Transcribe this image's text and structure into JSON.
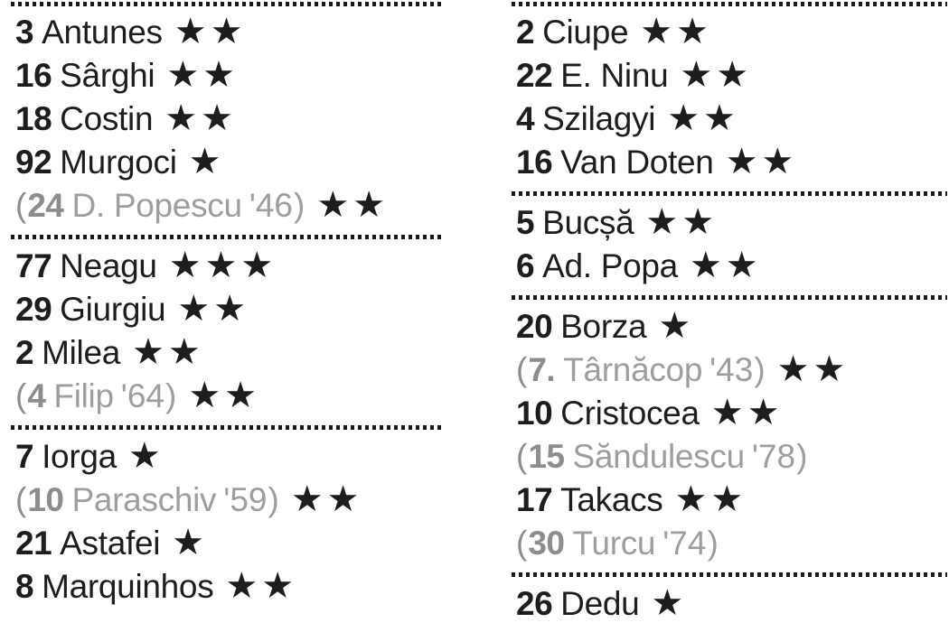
{
  "colors": {
    "background": "#ffffff",
    "ink": "#1d1d1b",
    "divider": "#171717",
    "sub_number_gray": "#8d8d8d",
    "sub_text_gray": "#9e9e9e"
  },
  "punctuation": {
    "open": "(",
    "close": ")"
  },
  "star_symbol": "★",
  "columns": [
    {
      "id": "col-home",
      "name": "home-team-ratings",
      "blocks": [
        {
          "rows": [
            {
              "number": "3",
              "name": "Antunes",
              "minute": "",
              "stars": "★★",
              "sub": false
            },
            {
              "number": "16",
              "name": "Sârghi",
              "minute": "",
              "stars": "★★",
              "sub": false
            },
            {
              "number": "18",
              "name": "Costin",
              "minute": "",
              "stars": "★★",
              "sub": false
            },
            {
              "number": "92",
              "name": "Murgoci",
              "minute": "",
              "stars": "★",
              "sub": false
            },
            {
              "number": "24",
              "name": "D. Popescu",
              "minute": "'46",
              "stars": "★★",
              "sub": true
            }
          ]
        },
        {
          "rows": [
            {
              "number": "77",
              "name": "Neagu",
              "minute": "",
              "stars": "★★★",
              "sub": false
            },
            {
              "number": "29",
              "name": "Giurgiu",
              "minute": "",
              "stars": "★★",
              "sub": false
            },
            {
              "number": "2",
              "name": "Milea",
              "minute": "",
              "stars": "★★",
              "sub": false
            },
            {
              "number": "4",
              "name": "Filip",
              "minute": "'64",
              "stars": "★★",
              "sub": true
            }
          ]
        },
        {
          "rows": [
            {
              "number": "7",
              "name": "Iorga",
              "minute": "",
              "stars": "★",
              "sub": false
            },
            {
              "number": "10",
              "name": "Paraschiv",
              "minute": "'59",
              "stars": "★★",
              "sub": true
            },
            {
              "number": "21",
              "name": "Astafei",
              "minute": "",
              "stars": "★",
              "sub": false
            },
            {
              "number": "8",
              "name": "Marquinhos",
              "minute": "",
              "stars": "★★",
              "sub": false
            }
          ]
        }
      ]
    },
    {
      "id": "col-away",
      "name": "away-team-ratings",
      "blocks": [
        {
          "rows": [
            {
              "number": "2",
              "name": "Ciupe",
              "minute": "",
              "stars": "★★",
              "sub": false
            },
            {
              "number": "22",
              "name": "E. Ninu",
              "minute": "",
              "stars": "★★",
              "sub": false
            },
            {
              "number": "4",
              "name": "Szilagyi",
              "minute": "",
              "stars": "★★",
              "sub": false
            },
            {
              "number": "16",
              "name": "Van Doten",
              "minute": "",
              "stars": "★★",
              "sub": false
            }
          ]
        },
        {
          "rows": [
            {
              "number": "5",
              "name": "Bucșă",
              "minute": "",
              "stars": "★★",
              "sub": false
            },
            {
              "number": "6",
              "name": "Ad. Popa",
              "minute": "",
              "stars": "★★",
              "sub": false
            }
          ]
        },
        {
          "rows": [
            {
              "number": "20",
              "name": "Borza",
              "minute": "",
              "stars": "★",
              "sub": false
            },
            {
              "number": "7.",
              "name": "Târnăcop",
              "minute": "'43",
              "stars": "★★",
              "sub": true
            },
            {
              "number": "10",
              "name": "Cristocea",
              "minute": "",
              "stars": "★★",
              "sub": false
            },
            {
              "number": "15",
              "name": "Săndulescu",
              "minute": "'78",
              "stars": "",
              "sub": true
            },
            {
              "number": "17",
              "name": "Takacs",
              "minute": "",
              "stars": "★★",
              "sub": false
            },
            {
              "number": "30",
              "name": "Turcu",
              "minute": "'74",
              "stars": "",
              "sub": true
            }
          ]
        },
        {
          "rows": [
            {
              "number": "26",
              "name": "Dedu",
              "minute": "",
              "stars": "★",
              "sub": false
            }
          ]
        }
      ]
    }
  ]
}
